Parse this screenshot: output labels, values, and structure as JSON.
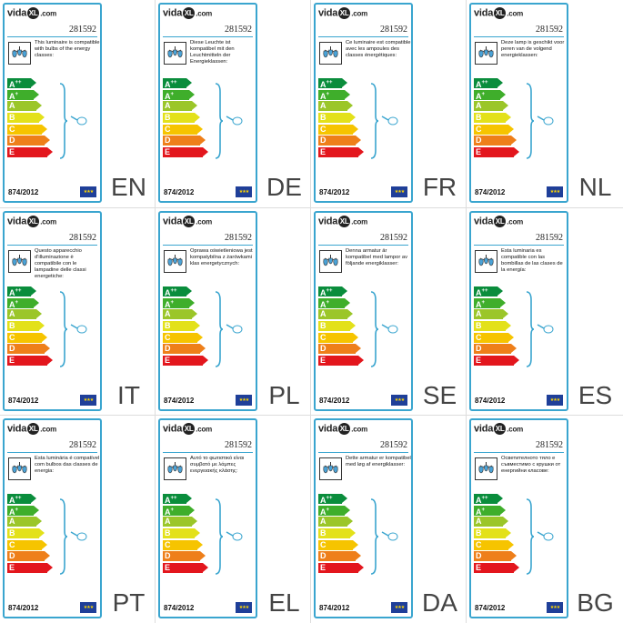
{
  "brand": {
    "name_left": "vida",
    "name_mark": "XL",
    "name_right": ".com"
  },
  "product_code": "281592",
  "regulation": "874/2012",
  "energy_classes": [
    {
      "letter": "A",
      "sup": "++",
      "color": "#0a8d3c",
      "width": 26
    },
    {
      "letter": "A",
      "sup": "+",
      "color": "#3fae2b",
      "width": 29
    },
    {
      "letter": "A",
      "sup": "",
      "color": "#9bc629",
      "width": 32
    },
    {
      "letter": "B",
      "sup": "",
      "color": "#e3e11a",
      "width": 35
    },
    {
      "letter": "C",
      "sup": "",
      "color": "#f6c400",
      "width": 38
    },
    {
      "letter": "D",
      "sup": "",
      "color": "#ee7f1a",
      "width": 41
    },
    {
      "letter": "E",
      "sup": "",
      "color": "#e3161d",
      "width": 44
    }
  ],
  "labels": [
    {
      "lang": "EN",
      "text": "This luminaire is compatible with bulbs of the energy classes:"
    },
    {
      "lang": "DE",
      "text": "Diese Leuchte ist kompatibel mit den Leuchtmitteln der Energieklassen:"
    },
    {
      "lang": "FR",
      "text": "Ce luminaire est compatible avec les ampoules des classes énergétiques:"
    },
    {
      "lang": "NL",
      "text": "Deze lamp is geschikt voor peren van de volgend energieklassen:"
    },
    {
      "lang": "IT",
      "text": "Questo apparecchio d'illuminazione è compatibile con le lampadine delle classi energetiche:"
    },
    {
      "lang": "PL",
      "text": "Oprawa oświetleniowa jest kompatybilna z żarówkami klas energetycznych:"
    },
    {
      "lang": "SE",
      "text": "Denna armatur är kompatibel med lampor av följande energiklasser:"
    },
    {
      "lang": "ES",
      "text": "Esta luminaria es compatible con las bombillas de las clases de la energía:"
    },
    {
      "lang": "PT",
      "text": "Esta luminária é compatível com bulbos das classes de energia:"
    },
    {
      "lang": "EL",
      "text": "Αυτό το φωτιστικό είναι συμβατό με λάμπες ενεργειακής κλάσης:"
    },
    {
      "lang": "DA",
      "text": "Dette armatur er kompatibel med løg af energiklasser:"
    },
    {
      "lang": "BG",
      "text": "Осветителното тяло е съвместимо с крушки от енергийни класове:"
    }
  ]
}
